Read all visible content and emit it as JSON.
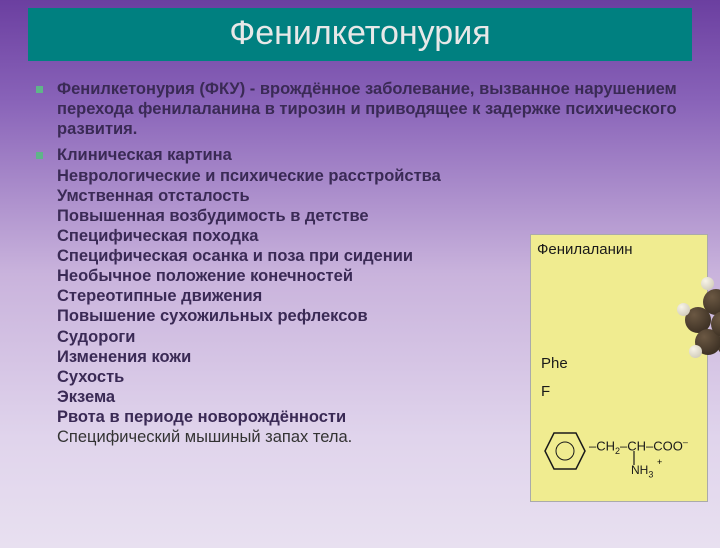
{
  "title": "Фенилкетонурия",
  "bullet1": "Фенилкетонурия (ФКУ) - врождённое заболевание, вызванное нарушением перехода фенилаланина в тирозин и приводящее к задержке психического развития.",
  "bullet2_head": "Клиническая картина",
  "bullet2_lines": [
    "Неврологические и психические расстройства",
    "Умственная отсталость",
    "Повышенная возбудимость в детстве",
    "Специфическая походка",
    "Специфическая осанка и поза при сидении",
    "Необычное положение конечностей",
    "Стереотипные движения",
    "Повышение сухожильных рефлексов",
    "Судороги",
    "Изменения кожи",
    "Сухость",
    "Экзема",
    "Рвота в периоде новорождённости"
  ],
  "bullet2_tail": "Специфический мышиный запах тела.",
  "image_box": {
    "label": "Фенилаланин",
    "abbr1": "Phe",
    "abbr2": "F",
    "chain_html": "–CH<span class='sub'>2</span>–CH–COO<span class='sup'>–</span>",
    "nh3_html": "NH<span class='sub'>3</span>",
    "background": "#f0ec90"
  },
  "colors": {
    "title_bg": "#008080",
    "title_fg": "#e8e8e8",
    "bullet": "#5fb589",
    "text": "#3a2a55"
  }
}
